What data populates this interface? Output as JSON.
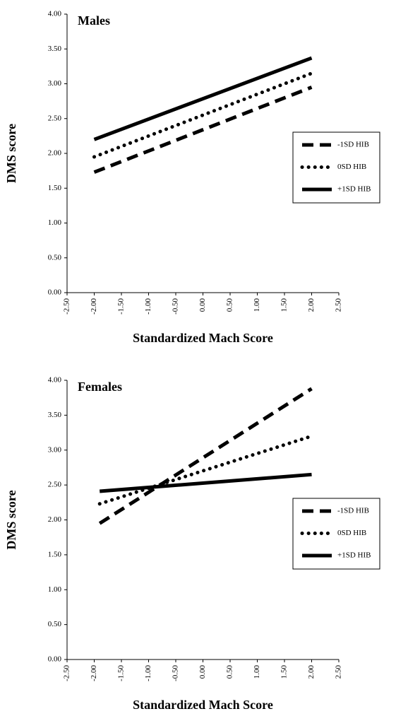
{
  "chart_data": [
    {
      "type": "line",
      "title": "Males",
      "x_label": "Standardized Mach Score",
      "y_label": "DMS score",
      "x": [
        -2,
        2
      ],
      "series": [
        {
          "name": "-1SD HIB",
          "color": "#000000",
          "style": "dashed",
          "values": [
            1.73,
            2.95
          ]
        },
        {
          "name": "0SD HIB",
          "color": "#000000",
          "style": "dotted",
          "values": [
            1.95,
            3.15
          ]
        },
        {
          "name": "+1SD HIB",
          "color": "#000000",
          "style": "solid",
          "values": [
            2.2,
            3.37
          ]
        }
      ],
      "xlim": [
        -2.5,
        2.5
      ],
      "xticks": [
        {
          "value": -2.5,
          "label": "-2.50"
        },
        {
          "value": -2,
          "label": "-2.00"
        },
        {
          "value": -1.5,
          "label": "-1.50"
        },
        {
          "value": -1,
          "label": "-1.00"
        },
        {
          "value": -0.5,
          "label": "-0.50"
        },
        {
          "value": 0,
          "label": "0.00"
        },
        {
          "value": 0.5,
          "label": "0.50"
        },
        {
          "value": 1,
          "label": "1.00"
        },
        {
          "value": 1.5,
          "label": "1.50"
        },
        {
          "value": 2,
          "label": "2.00"
        },
        {
          "value": 2.5,
          "label": "2.50"
        }
      ],
      "ylim": [
        0,
        4
      ],
      "yticks": [
        {
          "value": 0,
          "label": "0.00"
        },
        {
          "value": 0.5,
          "label": "0.50"
        },
        {
          "value": 1,
          "label": "1.00"
        },
        {
          "value": 1.5,
          "label": "1.50"
        },
        {
          "value": 2,
          "label": "2.00"
        },
        {
          "value": 2.5,
          "label": "2.50"
        },
        {
          "value": 3,
          "label": "3.00"
        },
        {
          "value": 3.5,
          "label": "3.50"
        },
        {
          "value": 4,
          "label": "4.00"
        }
      ],
      "legend": "right"
    },
    {
      "type": "line",
      "title": "Females",
      "x_label": "Standardized Mach Score",
      "y_label": "DMS score",
      "x": [
        -1.9,
        2
      ],
      "series": [
        {
          "name": "-1SD HIB",
          "color": "#000000",
          "style": "dashed",
          "values": [
            1.95,
            3.88
          ]
        },
        {
          "name": "0SD HIB",
          "color": "#000000",
          "style": "dotted",
          "values": [
            2.23,
            3.2
          ]
        },
        {
          "name": "+1SD HIB",
          "color": "#000000",
          "style": "solid",
          "values": [
            2.41,
            2.65
          ]
        }
      ],
      "xlim": [
        -2.5,
        2.5
      ],
      "xticks": [
        {
          "value": -2.5,
          "label": "-2.50"
        },
        {
          "value": -2,
          "label": "-2.00"
        },
        {
          "value": -1.5,
          "label": "-1.50"
        },
        {
          "value": -1,
          "label": "-1.00"
        },
        {
          "value": -0.5,
          "label": "-0.50"
        },
        {
          "value": 0,
          "label": "0.00"
        },
        {
          "value": 0.5,
          "label": "0.50"
        },
        {
          "value": 1,
          "label": "1.00"
        },
        {
          "value": 1.5,
          "label": "1.50"
        },
        {
          "value": 2,
          "label": "2.00"
        },
        {
          "value": 2.5,
          "label": "2.50"
        }
      ],
      "ylim": [
        0,
        4
      ],
      "yticks": [
        {
          "value": 0,
          "label": "0.00"
        },
        {
          "value": 0.5,
          "label": "0.50"
        },
        {
          "value": 1,
          "label": "1.00"
        },
        {
          "value": 1.5,
          "label": "1.50"
        },
        {
          "value": 2,
          "label": "2.00"
        },
        {
          "value": 2.5,
          "label": "2.50"
        },
        {
          "value": 3,
          "label": "3.00"
        },
        {
          "value": 3.5,
          "label": "3.50"
        },
        {
          "value": 4,
          "label": "4.00"
        }
      ],
      "legend": "right"
    }
  ]
}
